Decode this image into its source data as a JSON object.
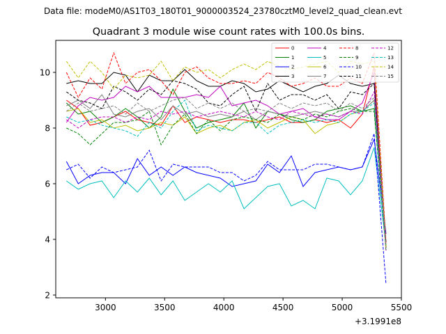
{
  "chart_data": {
    "type": "line",
    "suptitle": "Data file: modeM0/AS1T03_180T01_9000003524_23780cztM0_level2_quad_clean.evt",
    "title": "Quadrant 3 module wise count rates with 100.0s bins.",
    "xlabel": "",
    "ylabel": "",
    "x_offset_label": "+3.1991e8",
    "xlim": [
      2580,
      5500
    ],
    "ylim": [
      1.9,
      11.15
    ],
    "xticks": [
      3000,
      3500,
      4000,
      4500,
      5000,
      5500
    ],
    "yticks": [
      2,
      4,
      6,
      8,
      10
    ],
    "grid": false,
    "legend": {
      "placement": "top-right",
      "columns": 4
    },
    "x": [
      2670,
      2770,
      2870,
      2970,
      3070,
      3170,
      3270,
      3370,
      3470,
      3570,
      3670,
      3770,
      3870,
      3970,
      4070,
      4170,
      4270,
      4370,
      4470,
      4570,
      4670,
      4770,
      4870,
      4970,
      5070,
      5170,
      5270,
      5370
    ],
    "series": [
      {
        "name": "0",
        "color": "#ff0000",
        "dash": false,
        "values": [
          9.0,
          8.7,
          8.1,
          8.2,
          8.4,
          8.6,
          8.3,
          8.2,
          8.1,
          8.8,
          8.2,
          8.4,
          8.3,
          8.2,
          8.3,
          8.3,
          8.2,
          8.3,
          8.4,
          8.2,
          8.2,
          8.3,
          8.2,
          8.3,
          8.0,
          8.5,
          10.2,
          3.8
        ]
      },
      {
        "name": "1",
        "color": "#008000",
        "dash": false,
        "values": [
          8.9,
          8.5,
          8.6,
          8.2,
          8.4,
          8.7,
          8.4,
          8.0,
          8.4,
          9.4,
          8.6,
          8.0,
          8.2,
          8.3,
          8.4,
          8.9,
          8.0,
          8.6,
          8.5,
          8.3,
          8.2,
          8.3,
          8.6,
          8.7,
          8.8,
          8.6,
          8.7,
          3.9
        ]
      },
      {
        "name": "2",
        "color": "#0000ff",
        "dash": false,
        "values": [
          6.8,
          6.0,
          6.3,
          6.4,
          6.4,
          6.0,
          6.9,
          6.3,
          6.6,
          6.3,
          6.6,
          6.4,
          6.3,
          6.2,
          5.9,
          6.0,
          6.1,
          6.7,
          6.4,
          7.0,
          5.9,
          6.4,
          6.5,
          6.6,
          6.5,
          6.6,
          7.6,
          4.2
        ]
      },
      {
        "name": "3",
        "color": "#000000",
        "dash": false,
        "values": [
          9.6,
          9.7,
          9.6,
          9.6,
          10.0,
          9.9,
          9.3,
          9.9,
          9.7,
          9.7,
          10.1,
          9.7,
          9.5,
          9.5,
          9.7,
          9.6,
          9.3,
          9.4,
          9.7,
          9.5,
          9.3,
          9.5,
          9.6,
          9.9,
          9.6,
          9.5,
          9.6,
          3.9
        ]
      },
      {
        "name": "4",
        "color": "#c000c0",
        "dash": false,
        "values": [
          8.2,
          8.8,
          9.1,
          9.0,
          9.1,
          9.5,
          9.3,
          9.5,
          9.1,
          9.1,
          9.1,
          9.2,
          9.1,
          9.5,
          8.8,
          8.9,
          9.0,
          8.8,
          8.5,
          8.6,
          8.7,
          8.4,
          8.3,
          8.3,
          8.6,
          8.9,
          10.0,
          3.7
        ]
      },
      {
        "name": "5",
        "color": "#00bfbf",
        "dash": false,
        "values": [
          6.1,
          5.8,
          6.0,
          6.1,
          5.5,
          6.1,
          5.7,
          6.2,
          5.6,
          6.1,
          5.4,
          5.7,
          6.0,
          5.7,
          6.1,
          5.1,
          5.5,
          5.9,
          6.0,
          5.2,
          5.4,
          5.1,
          6.2,
          6.1,
          5.6,
          6.1,
          7.3,
          3.8
        ]
      },
      {
        "name": "6",
        "color": "#bfbf00",
        "dash": false,
        "values": [
          8.6,
          8.7,
          8.2,
          8.3,
          8.0,
          8.1,
          7.9,
          8.0,
          8.2,
          8.1,
          8.4,
          7.8,
          8.0,
          8.1,
          7.9,
          8.2,
          8.3,
          8.0,
          8.2,
          8.4,
          8.3,
          7.8,
          8.1,
          8.2,
          8.5,
          8.6,
          9.0,
          3.8
        ]
      },
      {
        "name": "7",
        "color": "#808080",
        "dash": false,
        "values": [
          8.8,
          9.0,
          8.7,
          9.2,
          8.5,
          8.4,
          8.6,
          8.7,
          8.3,
          8.8,
          8.5,
          8.6,
          8.4,
          8.5,
          8.4,
          8.6,
          8.3,
          8.6,
          8.5,
          8.4,
          8.5,
          8.6,
          8.5,
          8.4,
          8.6,
          8.6,
          9.0,
          3.7
        ]
      },
      {
        "name": "8",
        "color": "#ff0000",
        "dash": true,
        "values": [
          10.0,
          9.1,
          9.8,
          9.4,
          10.7,
          9.6,
          10.0,
          10.1,
          9.7,
          9.2,
          10.0,
          10.2,
          9.8,
          9.6,
          9.6,
          9.7,
          9.6,
          10.0,
          9.8,
          9.5,
          9.6,
          9.8,
          9.5,
          9.5,
          9.8,
          9.6,
          10.7,
          3.9
        ]
      },
      {
        "name": "9",
        "color": "#008000",
        "dash": true,
        "values": [
          8.0,
          7.8,
          7.4,
          7.8,
          8.2,
          8.2,
          8.3,
          8.6,
          7.4,
          8.1,
          8.5,
          7.8,
          8.3,
          7.9,
          8.3,
          8.4,
          8.3,
          8.2,
          8.5,
          8.4,
          8.3,
          8.5,
          8.4,
          8.6,
          8.7,
          8.6,
          8.6,
          3.6
        ]
      },
      {
        "name": "10",
        "color": "#0000ff",
        "dash": true,
        "values": [
          6.5,
          6.7,
          6.2,
          6.6,
          6.4,
          6.5,
          6.6,
          7.2,
          6.1,
          6.7,
          6.6,
          6.6,
          6.6,
          6.4,
          6.4,
          6.1,
          6.3,
          6.8,
          6.5,
          6.5,
          6.5,
          6.7,
          6.7,
          6.6,
          6.5,
          6.6,
          7.8,
          2.4
        ]
      },
      {
        "name": "11",
        "color": "#000000",
        "dash": true,
        "values": [
          9.3,
          9.0,
          8.9,
          8.7,
          9.5,
          9.3,
          9.0,
          9.4,
          9.2,
          9.7,
          9.6,
          9.4,
          8.9,
          8.8,
          9.2,
          9.5,
          8.6,
          9.6,
          9.0,
          9.2,
          9.2,
          9.0,
          9.2,
          8.7,
          9.3,
          9.2,
          9.6,
          3.7
        ]
      },
      {
        "name": "12",
        "color": "#c000c0",
        "dash": true,
        "values": [
          8.3,
          8.0,
          8.3,
          8.4,
          8.4,
          8.2,
          8.4,
          8.3,
          8.6,
          8.5,
          8.6,
          8.4,
          8.5,
          8.6,
          8.5,
          8.4,
          8.6,
          8.4,
          8.3,
          8.6,
          8.5,
          8.4,
          8.5,
          8.4,
          8.6,
          8.5,
          9.3,
          3.6
        ]
      },
      {
        "name": "13",
        "color": "#00bfbf",
        "dash": true,
        "values": [
          8.4,
          8.2,
          8.3,
          8.1,
          8.0,
          7.9,
          7.7,
          8.2,
          8.0,
          8.6,
          9.0,
          7.9,
          8.1,
          8.0,
          7.9,
          8.2,
          8.2,
          7.8,
          8.1,
          8.2,
          8.3,
          8.2,
          8.3,
          8.2,
          8.5,
          8.6,
          8.9,
          3.7
        ]
      },
      {
        "name": "14",
        "color": "#bfbf00",
        "dash": true,
        "values": [
          10.4,
          9.8,
          10.4,
          10.0,
          9.4,
          9.9,
          9.8,
          9.9,
          10.4,
          9.7,
          10.2,
          10.0,
          10.1,
          9.8,
          10.1,
          10.3,
          10.1,
          10.4,
          10.2,
          10.1,
          10.2,
          10.3,
          10.4,
          10.0,
          10.4,
          10.3,
          10.4,
          3.7
        ]
      },
      {
        "name": "15",
        "color": "#808080",
        "dash": true,
        "values": [
          8.6,
          8.9,
          8.6,
          8.7,
          8.8,
          8.5,
          8.9,
          8.6,
          8.8,
          9.0,
          9.1,
          8.7,
          8.9,
          8.7,
          8.9,
          8.6,
          8.7,
          8.6,
          8.9,
          8.7,
          8.9,
          8.8,
          8.9,
          8.6,
          8.9,
          8.7,
          9.1,
          3.8
        ]
      }
    ]
  }
}
